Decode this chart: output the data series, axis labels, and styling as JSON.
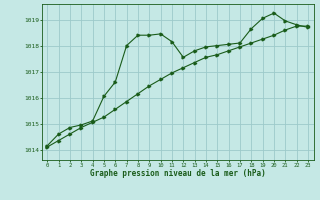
{
  "xlabel": "Graphe pression niveau de la mer (hPa)",
  "background_color": "#c5e8e5",
  "grid_color": "#9dcaca",
  "line_color": "#1a5c1a",
  "x_values": [
    0,
    1,
    2,
    3,
    4,
    5,
    6,
    7,
    8,
    9,
    10,
    11,
    12,
    13,
    14,
    15,
    16,
    17,
    18,
    19,
    20,
    21,
    22,
    23
  ],
  "series1": [
    1014.15,
    1014.6,
    1014.85,
    1014.95,
    1015.1,
    1016.05,
    1016.6,
    1018.0,
    1018.4,
    1018.4,
    1018.45,
    1018.15,
    1017.55,
    1017.8,
    1017.95,
    1018.0,
    1018.05,
    1018.1,
    1018.65,
    1019.05,
    1019.25,
    1018.95,
    1018.8,
    1018.7
  ],
  "series2": [
    1014.1,
    1014.35,
    1014.6,
    1014.85,
    1015.05,
    1015.25,
    1015.55,
    1015.85,
    1016.15,
    1016.45,
    1016.7,
    1016.95,
    1017.15,
    1017.35,
    1017.55,
    1017.65,
    1017.8,
    1017.95,
    1018.1,
    1018.25,
    1018.4,
    1018.6,
    1018.75,
    1018.75
  ],
  "ylim_min": 1013.6,
  "ylim_max": 1019.6,
  "yticks": [
    1014,
    1015,
    1016,
    1017,
    1018,
    1019
  ],
  "xticks": [
    0,
    1,
    2,
    3,
    4,
    5,
    6,
    7,
    8,
    9,
    10,
    11,
    12,
    13,
    14,
    15,
    16,
    17,
    18,
    19,
    20,
    21,
    22,
    23
  ],
  "fig_width": 3.2,
  "fig_height": 2.0,
  "dpi": 100
}
